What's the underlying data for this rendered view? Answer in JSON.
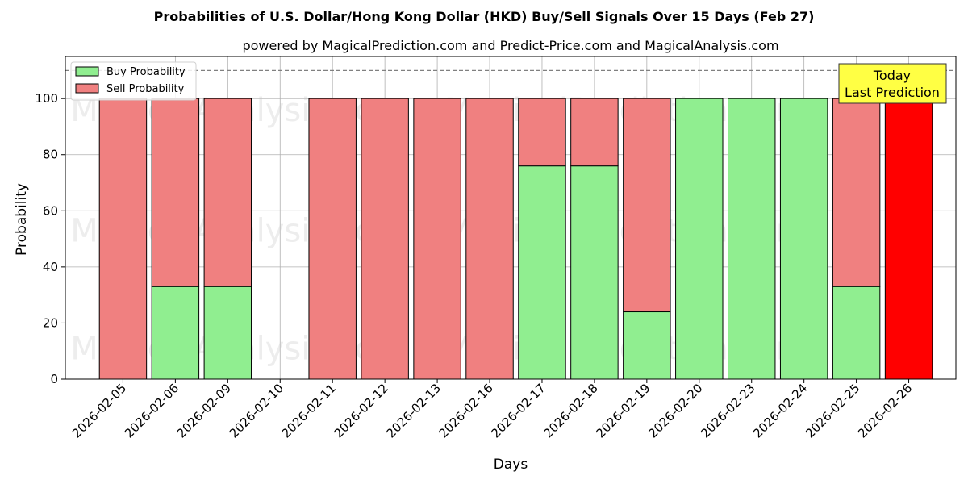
{
  "chart_data": {
    "type": "bar",
    "stacked": true,
    "title": "Probabilities of U.S. Dollar/Hong Kong Dollar (HKD) Buy/Sell Signals Over 15 Days (Feb 27)",
    "subtitle": "powered by MagicalPrediction.com and Predict-Price.com and MagicalAnalysis.com",
    "xlabel": "Days",
    "ylabel": "Probability",
    "ylim": [
      0,
      115
    ],
    "yticks": [
      0,
      20,
      40,
      60,
      80,
      100
    ],
    "reference_line": 110,
    "grid": true,
    "legend_position": "top-left",
    "categories": [
      "2026-02-05",
      "2026-02-06",
      "2026-02-09",
      "2026-02-10",
      "2026-02-11",
      "2026-02-12",
      "2026-02-13",
      "2026-02-16",
      "2026-02-17",
      "2026-02-18",
      "2026-02-19",
      "2026-02-20",
      "2026-02-23",
      "2026-02-24",
      "2026-02-25",
      "2026-02-26"
    ],
    "series": [
      {
        "name": "Buy Probability",
        "color": "#90ee90",
        "values": [
          0,
          33,
          33,
          0,
          0,
          0,
          0,
          0,
          76,
          76,
          24,
          100,
          100,
          100,
          33,
          0
        ]
      },
      {
        "name": "Sell Probability",
        "color": "#f08080",
        "values": [
          100,
          67,
          67,
          0,
          100,
          100,
          100,
          100,
          24,
          24,
          76,
          0,
          0,
          0,
          67,
          100
        ]
      }
    ],
    "highlight": {
      "index": 15,
      "color": "#ff0000"
    },
    "annotation": {
      "lines": [
        "Today",
        "Last Prediction"
      ],
      "background": "#ffff44"
    },
    "watermarks": [
      "MagicalAnalysis.com",
      "MagicalPrediction.com"
    ]
  }
}
